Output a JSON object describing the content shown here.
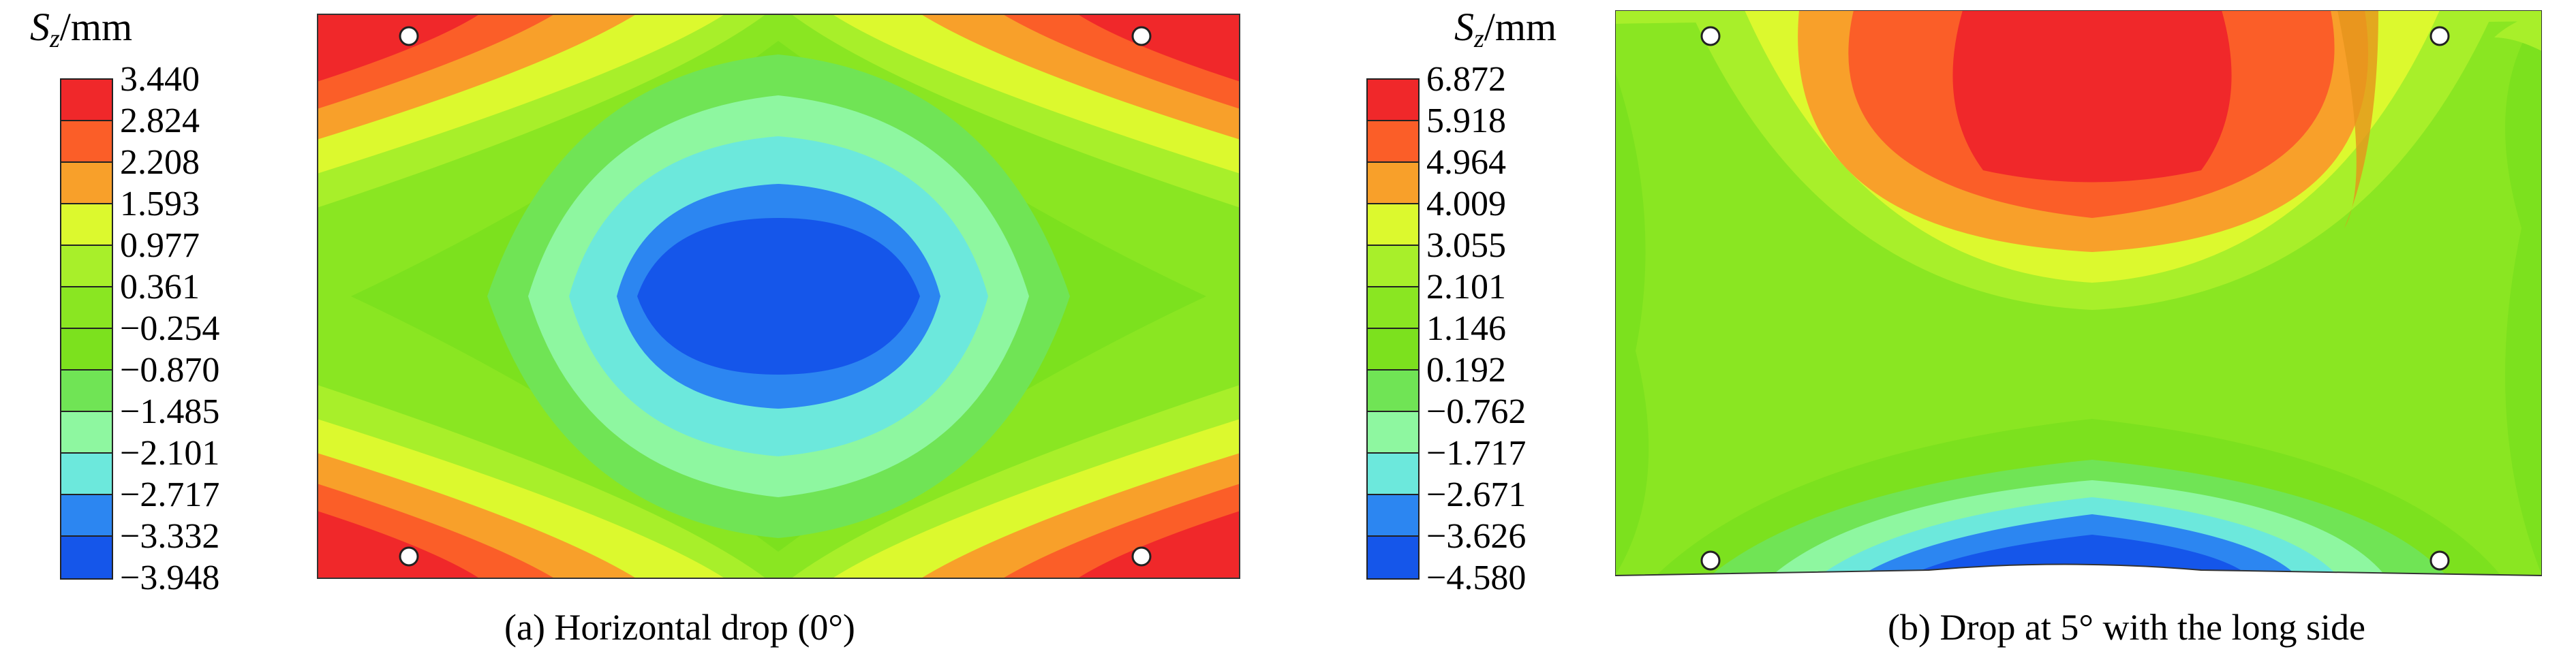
{
  "chart_data": [
    {
      "type": "heatmap",
      "caption": "(a) Horizontal drop (0°)",
      "legend": {
        "symbol": "S",
        "subscript": "z",
        "unit": "/mm",
        "levels": [
          "3.440",
          "2.824",
          "2.208",
          "1.593",
          "0.977",
          "0.361",
          "−0.254",
          "−0.870",
          "−1.485",
          "−2.101",
          "−2.717",
          "−3.332",
          "−3.948"
        ],
        "colors": [
          "#f0282a",
          "#fb5e28",
          "#f8a02a",
          "#dcf92e",
          "#a8ef2a",
          "#8ae622",
          "#7ce11e",
          "#70e455",
          "#8ef7a0",
          "#6ce8dc",
          "#2c86f1",
          "#1556ea"
        ]
      },
      "field_description": "Central minimum (blue) with concentric rings rising to red maxima at the four corners",
      "value_range": [
        -3.948,
        3.44
      ],
      "mounting_holes": 4
    },
    {
      "type": "heatmap",
      "caption": "(b) Drop at 5° with the long side",
      "legend": {
        "symbol": "S",
        "subscript": "z",
        "unit": "/mm",
        "levels": [
          "6.872",
          "5.918",
          "4.964",
          "4.009",
          "3.055",
          "2.101",
          "1.146",
          "0.192",
          "−0.762",
          "−1.717",
          "−2.671",
          "−3.626",
          "−4.580"
        ],
        "colors": [
          "#f0282a",
          "#fb5e28",
          "#f8a02a",
          "#dcf92e",
          "#a8ef2a",
          "#8ae622",
          "#7ce11e",
          "#70e455",
          "#8ef7a0",
          "#6ce8dc",
          "#2c86f1",
          "#1556ea"
        ]
      },
      "field_description": "Maximum (red) at top-center decreasing downward to a blue minimum at bottom-center",
      "value_range": [
        -4.58,
        6.872
      ],
      "mounting_holes": 4
    }
  ]
}
